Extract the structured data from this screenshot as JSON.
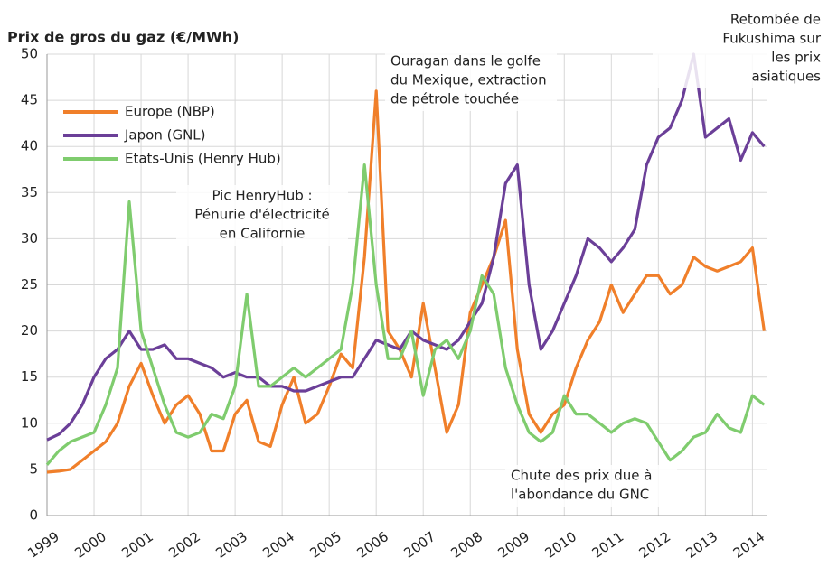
{
  "chart_data": {
    "type": "line",
    "title": "Prix de gros du gaz (€/MWh)",
    "x": [
      1999,
      1999.25,
      1999.5,
      1999.75,
      2000,
      2000.25,
      2000.5,
      2000.75,
      2001,
      2001.25,
      2001.5,
      2001.75,
      2002,
      2002.25,
      2002.5,
      2002.75,
      2003,
      2003.25,
      2003.5,
      2003.75,
      2004,
      2004.25,
      2004.5,
      2004.75,
      2005,
      2005.25,
      2005.5,
      2005.75,
      2006,
      2006.25,
      2006.5,
      2006.75,
      2007,
      2007.25,
      2007.5,
      2007.75,
      2008,
      2008.25,
      2008.5,
      2008.75,
      2009,
      2009.25,
      2009.5,
      2009.75,
      2010,
      2010.25,
      2010.5,
      2010.75,
      2011,
      2011.25,
      2011.5,
      2011.75,
      2012,
      2012.25,
      2012.5,
      2012.75,
      2013,
      2013.25,
      2013.5,
      2013.75,
      2014,
      2014.25
    ],
    "series": [
      {
        "name": "Europe (NBP)",
        "color": "#f07f2a",
        "values": [
          4.7,
          4.8,
          5,
          6,
          7,
          8,
          10,
          14,
          16.5,
          13,
          10,
          12,
          13,
          11,
          7,
          7,
          11,
          12.5,
          8,
          7.5,
          12,
          15,
          10,
          11,
          14,
          17.5,
          16,
          28,
          46,
          20,
          18,
          15,
          23,
          16,
          9,
          12,
          22,
          25,
          28,
          32,
          18,
          11,
          9,
          11,
          12,
          16,
          19,
          21,
          25,
          22,
          24,
          26,
          26,
          24,
          25,
          28,
          27,
          26.5,
          27,
          27.5,
          29,
          20
        ]
      },
      {
        "name": "Japon (GNL)",
        "color": "#6b3f98",
        "values": [
          8.2,
          8.8,
          10,
          12,
          15,
          17,
          18,
          20,
          18,
          18,
          18.5,
          17,
          17,
          16.5,
          16,
          15,
          15.5,
          15,
          15,
          14,
          14,
          13.5,
          13.5,
          14,
          14.5,
          15,
          15,
          17,
          19,
          18.5,
          18,
          20,
          19,
          18.5,
          18,
          19,
          21,
          23,
          28,
          36,
          38,
          25,
          18,
          20,
          23,
          26,
          30,
          29,
          27.5,
          29,
          31,
          38,
          41,
          42,
          45,
          50,
          41,
          42,
          43,
          38.5,
          41.5,
          40
        ]
      },
      {
        "name": "Etats-Unis (Henry Hub)",
        "color": "#7fcc6e",
        "values": [
          5.5,
          7,
          8,
          8.5,
          9,
          12,
          16,
          34,
          20,
          16,
          12,
          9,
          8.5,
          9,
          11,
          10.5,
          14,
          24,
          14,
          14,
          15,
          16,
          15,
          16,
          17,
          18,
          25,
          38,
          25,
          17,
          17,
          20,
          13,
          18,
          19,
          17,
          20,
          26,
          24,
          16,
          12,
          9,
          8,
          9,
          13,
          11,
          11,
          10,
          9,
          10,
          10.5,
          10,
          8,
          6,
          7,
          8.5,
          9,
          11,
          9.5,
          9,
          13,
          12
        ]
      }
    ],
    "xlim": [
      1999,
      2014.3
    ],
    "ylim": [
      0,
      50
    ],
    "xticks": [
      1999,
      2000,
      2001,
      2002,
      2003,
      2004,
      2005,
      2006,
      2007,
      2008,
      2009,
      2010,
      2011,
      2012,
      2013,
      2014
    ],
    "yticks": [
      0,
      5,
      10,
      15,
      20,
      25,
      30,
      35,
      40,
      45,
      50
    ],
    "grid": true,
    "legend": "upper left",
    "annotations": [
      {
        "lines": [
          "Pic HenryHub :",
          "Pénurie d'électricité",
          "en Californie"
        ]
      },
      {
        "lines": [
          "Ouragan dans le golfe",
          "du Mexique, extraction",
          "de pétrole touchée"
        ]
      },
      {
        "lines": [
          "Retombée de",
          "Fukushima sur",
          "les prix",
          "asiatiques"
        ]
      },
      {
        "lines": [
          "Chute des prix due à",
          "l'abondance du GNC"
        ]
      }
    ]
  }
}
